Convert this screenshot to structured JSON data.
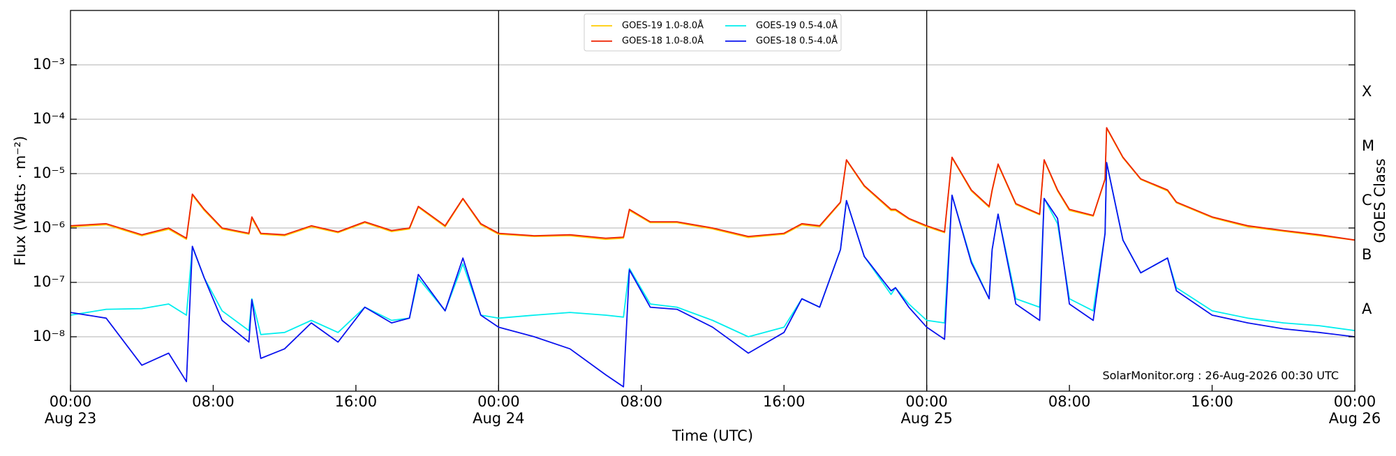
{
  "chart_data": {
    "type": "line",
    "ylabel": "Flux (Watts · m⁻²)",
    "xlabel": "Time (UTC)",
    "y2label": "GOES Class",
    "annotation": "SolarMonitor.org : 26-Aug-2026 00:30 UTC",
    "log_y": true,
    "grid": "y",
    "legend_position": "top",
    "ylim": [
      1e-09,
      0.01
    ],
    "yticks": [
      {
        "value": 1e-08,
        "label": "10⁻⁸"
      },
      {
        "value": 1e-07,
        "label": "10⁻⁷"
      },
      {
        "value": 1e-06,
        "label": "10⁻⁶"
      },
      {
        "value": 1e-05,
        "label": "10⁻⁵"
      },
      {
        "value": 0.0001,
        "label": "10⁻⁴"
      },
      {
        "value": 0.001,
        "label": "10⁻³"
      }
    ],
    "y2lim": [
      1e-09,
      0.01
    ],
    "y2ticks": [
      {
        "value": 3.16e-08,
        "label": "A"
      },
      {
        "value": 3.16e-07,
        "label": "B"
      },
      {
        "value": 3.16e-06,
        "label": "C"
      },
      {
        "value": 3.16e-05,
        "label": "M"
      },
      {
        "value": 0.000316,
        "label": "X"
      }
    ],
    "xlim": [
      "Aug 23 00:00",
      "Aug 26 00:00"
    ],
    "xticks": [
      {
        "value": "Aug 23 00:00",
        "label": "00:00\nAug 23"
      },
      {
        "value": "Aug 23 08:00",
        "label": "08:00"
      },
      {
        "value": "Aug 23 16:00",
        "label": "16:00"
      },
      {
        "value": "Aug 24 00:00",
        "label": "00:00\nAug 24"
      },
      {
        "value": "Aug 24 08:00",
        "label": "08:00"
      },
      {
        "value": "Aug 24 16:00",
        "label": "16:00"
      },
      {
        "value": "Aug 25 00:00",
        "label": "00:00\nAug 25"
      },
      {
        "value": "Aug 25 08:00",
        "label": "08:00"
      },
      {
        "value": "Aug 25 16:00",
        "label": "16:00"
      },
      {
        "value": "Aug 26 00:00",
        "label": "00:00\nAug 26"
      }
    ],
    "day_lines": [
      "Aug 24 00:00",
      "Aug 25 00:00"
    ],
    "x": [
      "Aug 23 00:00",
      "Aug 23 02:00",
      "Aug 23 04:00",
      "Aug 23 05:30",
      "Aug 23 06:30",
      "Aug 23 06:50",
      "Aug 23 07:30",
      "Aug 23 08:30",
      "Aug 23 10:00",
      "Aug 23 10:10",
      "Aug 23 10:40",
      "Aug 23 12:00",
      "Aug 23 13:30",
      "Aug 23 15:00",
      "Aug 23 16:30",
      "Aug 23 18:00",
      "Aug 23 19:00",
      "Aug 23 19:30",
      "Aug 23 21:00",
      "Aug 23 22:00",
      "Aug 23 23:00",
      "Aug 24 00:00",
      "Aug 24 02:00",
      "Aug 24 04:00",
      "Aug 24 06:00",
      "Aug 24 07:00",
      "Aug 24 07:20",
      "Aug 24 08:30",
      "Aug 24 10:00",
      "Aug 24 12:00",
      "Aug 24 14:00",
      "Aug 24 16:00",
      "Aug 24 17:00",
      "Aug 24 18:00",
      "Aug 24 19:10",
      "Aug 24 19:30",
      "Aug 24 20:30",
      "Aug 24 22:00",
      "Aug 24 22:15",
      "Aug 24 23:00",
      "Aug 25 00:00",
      "Aug 25 01:00",
      "Aug 25 01:25",
      "Aug 25 02:30",
      "Aug 25 03:30",
      "Aug 25 03:40",
      "Aug 25 04:00",
      "Aug 25 05:00",
      "Aug 25 06:20",
      "Aug 25 06:35",
      "Aug 25 07:20",
      "Aug 25 08:00",
      "Aug 25 09:20",
      "Aug 25 10:00",
      "Aug 25 10:05",
      "Aug 25 11:00",
      "Aug 25 12:00",
      "Aug 25 13:30",
      "Aug 25 14:00",
      "Aug 25 16:00",
      "Aug 25 18:00",
      "Aug 25 20:00",
      "Aug 25 22:00",
      "Aug 26 00:00"
    ],
    "series": [
      {
        "name": "GOES-19 1.0-8.0Å",
        "color": "#ffcc00",
        "values": [
          1.05e-06,
          1.15e-06,
          7.2e-07,
          9.5e-07,
          6.2e-07,
          4e-06,
          2.1e-06,
          9.6e-07,
          7.7e-07,
          1.5e-06,
          7.7e-07,
          7.2e-07,
          1.05e-06,
          8.2e-07,
          1.25e-06,
          8.6e-07,
          9.6e-07,
          2.4e-06,
          1.05e-06,
          3.4e-06,
          1.15e-06,
          7.7e-07,
          7e-07,
          7.2e-07,
          6.2e-07,
          6.5e-07,
          2.1e-06,
          1.25e-06,
          1.25e-06,
          9.6e-07,
          6.7e-07,
          7.7e-07,
          1.15e-06,
          1.05e-06,
          2.9e-06,
          1.75e-05,
          5.8e-06,
          2.1e-06,
          2.1e-06,
          1.45e-06,
          1.05e-06,
          8.2e-07,
          1.95e-05,
          4.8e-06,
          2.4e-06,
          4.8e-06,
          1.45e-05,
          2.7e-06,
          1.75e-06,
          1.75e-05,
          4.8e-06,
          2.1e-06,
          1.65e-06,
          7.8e-06,
          6.8e-05,
          1.95e-05,
          7.8e-06,
          4.8e-06,
          2.9e-06,
          1.55e-06,
          1.05e-06,
          8.7e-07,
          7.2e-07,
          6e-07
        ]
      },
      {
        "name": "GOES-18 1.0-8.0Å",
        "color": "#ee2200",
        "values": [
          1.1e-06,
          1.2e-06,
          7.5e-07,
          1e-06,
          6.5e-07,
          4.2e-06,
          2.2e-06,
          1e-06,
          8e-07,
          1.6e-06,
          8e-07,
          7.5e-07,
          1.1e-06,
          8.5e-07,
          1.3e-06,
          9e-07,
          1e-06,
          2.5e-06,
          1.1e-06,
          3.5e-06,
          1.2e-06,
          8e-07,
          7.2e-07,
          7.5e-07,
          6.5e-07,
          6.8e-07,
          2.2e-06,
          1.3e-06,
          1.3e-06,
          1e-06,
          7e-07,
          8e-07,
          1.2e-06,
          1.1e-06,
          3e-06,
          1.8e-05,
          6e-06,
          2.2e-06,
          2.2e-06,
          1.5e-06,
          1.1e-06,
          8.5e-07,
          2e-05,
          5e-06,
          2.5e-06,
          5e-06,
          1.5e-05,
          2.8e-06,
          1.8e-06,
          1.8e-05,
          5e-06,
          2.2e-06,
          1.7e-06,
          8e-06,
          7e-05,
          2e-05,
          8e-06,
          5e-06,
          3e-06,
          1.6e-06,
          1.1e-06,
          9e-07,
          7.5e-07,
          6e-07
        ]
      },
      {
        "name": "GOES-19 0.5-4.0Å",
        "color": "#00eeee",
        "values": [
          2.5e-08,
          3.2e-08,
          3.3e-08,
          4e-08,
          2.5e-08,
          4.5e-07,
          1.2e-07,
          3e-08,
          1.3e-08,
          5e-08,
          1.1e-08,
          1.2e-08,
          2e-08,
          1.2e-08,
          3.5e-08,
          2e-08,
          2.2e-08,
          1.2e-07,
          3e-08,
          2.2e-07,
          2.5e-08,
          2.2e-08,
          2.5e-08,
          2.8e-08,
          2.5e-08,
          2.3e-08,
          1.8e-07,
          4e-08,
          3.5e-08,
          2e-08,
          1e-08,
          1.5e-08,
          5e-08,
          3.5e-08,
          4e-07,
          3.2e-06,
          3e-07,
          6e-08,
          8e-08,
          4e-08,
          2e-08,
          1.8e-08,
          4e-06,
          2.5e-07,
          5e-08,
          4e-07,
          1.8e-06,
          5e-08,
          3.5e-08,
          3.5e-06,
          1.2e-06,
          5e-08,
          3e-08,
          8e-07,
          1.6e-05,
          6e-07,
          1.5e-07,
          2.8e-07,
          8e-08,
          3e-08,
          2.2e-08,
          1.8e-08,
          1.6e-08,
          1.3e-08
        ]
      },
      {
        "name": "GOES-18 0.5-4.0Å",
        "color": "#0a12ee",
        "values": [
          2.8e-08,
          2.2e-08,
          3e-09,
          5e-09,
          1.5e-09,
          4.6e-07,
          1.2e-07,
          2e-08,
          8e-09,
          4.8e-08,
          4e-09,
          6e-09,
          1.8e-08,
          8e-09,
          3.5e-08,
          1.8e-08,
          2.2e-08,
          1.4e-07,
          3e-08,
          2.8e-07,
          2.5e-08,
          1.5e-08,
          1e-08,
          6e-09,
          2e-09,
          1.2e-09,
          1.7e-07,
          3.5e-08,
          3.2e-08,
          1.5e-08,
          5e-09,
          1.2e-08,
          5e-08,
          3.5e-08,
          4e-07,
          3.2e-06,
          3e-07,
          7e-08,
          8e-08,
          3.5e-08,
          1.5e-08,
          9e-09,
          4e-06,
          2.3e-07,
          5e-08,
          4e-07,
          1.8e-06,
          4e-08,
          2e-08,
          3.5e-06,
          1.5e-06,
          4e-08,
          2e-08,
          8e-07,
          1.6e-05,
          6e-07,
          1.5e-07,
          2.8e-07,
          7e-08,
          2.5e-08,
          1.8e-08,
          1.4e-08,
          1.2e-08,
          1e-08
        ]
      }
    ]
  }
}
